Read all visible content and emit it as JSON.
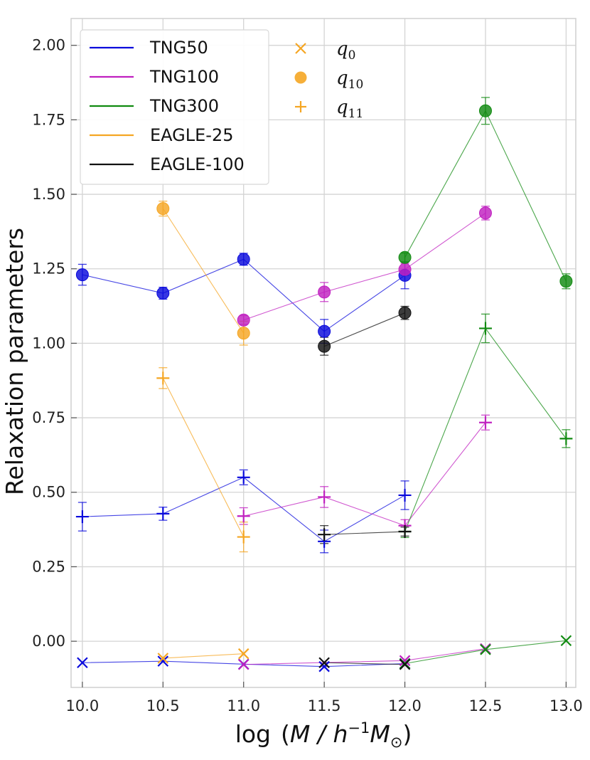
{
  "chart_data": {
    "type": "line",
    "title": "",
    "xlabel_prefix": "log",
    "xlabel_math": "M / h",
    "xlabel_exp": "−1",
    "xlabel_math2": "M",
    "xlabel_sub": "⊙",
    "ylabel": "Relaxation parameters",
    "xlim": [
      9.93,
      13.06
    ],
    "ylim": [
      -0.155,
      2.09
    ],
    "xticks": [
      10.0,
      10.5,
      11.0,
      11.5,
      12.0,
      12.5,
      13.0
    ],
    "xtick_labels": [
      "10.0",
      "10.5",
      "11.0",
      "11.5",
      "12.0",
      "12.5",
      "13.0"
    ],
    "yticks": [
      0.0,
      0.25,
      0.5,
      0.75,
      1.0,
      1.25,
      1.5,
      1.75,
      2.0
    ],
    "ytick_labels": [
      "0.00",
      "0.25",
      "0.50",
      "0.75",
      "1.00",
      "1.25",
      "1.50",
      "1.75",
      "2.00"
    ],
    "grid": true,
    "legend_position": "top-left",
    "legend_series": [
      {
        "label": "TNG50",
        "color": "#0a0adc"
      },
      {
        "label": "TNG100",
        "color": "#c020c0"
      },
      {
        "label": "TNG300",
        "color": "#108a10"
      },
      {
        "label": "EAGLE-25",
        "color": "#f5a623"
      },
      {
        "label": "EAGLE-100",
        "color": "#111111"
      }
    ],
    "legend_markers": [
      {
        "marker": "x",
        "math": "q",
        "sub": "0",
        "color": "#f5a623"
      },
      {
        "marker": "o",
        "math": "q",
        "sub": "10",
        "color": "#f5a623"
      },
      {
        "marker": "+",
        "math": "q",
        "sub": "11",
        "color": "#f5a623"
      }
    ],
    "series": [
      {
        "name": "TNG50",
        "color": "#0a0adc",
        "q0": {
          "x": [
            10.0,
            10.5,
            11.0,
            11.5,
            12.0
          ],
          "y": [
            -0.072,
            -0.067,
            -0.077,
            -0.085,
            -0.075
          ],
          "err": [
            0,
            0,
            0,
            0,
            0
          ]
        },
        "q10": {
          "x": [
            10.0,
            10.5,
            11.0,
            11.5,
            12.0
          ],
          "y": [
            1.23,
            1.168,
            1.282,
            1.04,
            1.228
          ],
          "err": [
            0.035,
            0.02,
            0.02,
            0.04,
            0.045
          ]
        },
        "q11": {
          "x": [
            10.0,
            10.5,
            11.0,
            11.5,
            12.0
          ],
          "y": [
            0.418,
            0.428,
            0.55,
            0.335,
            0.49
          ],
          "err": [
            0.048,
            0.022,
            0.025,
            0.038,
            0.048
          ]
        }
      },
      {
        "name": "TNG100",
        "color": "#c020c0",
        "q0": {
          "x": [
            11.0,
            12.0,
            12.5
          ],
          "y": [
            -0.078,
            -0.065,
            -0.025
          ],
          "err": [
            0,
            0,
            0
          ]
        },
        "q10": {
          "x": [
            11.0,
            11.5,
            12.0,
            12.5
          ],
          "y": [
            1.078,
            1.172,
            1.248,
            1.437
          ],
          "err": [
            0.015,
            0.032,
            0.02,
            0.023
          ]
        },
        "q11": {
          "x": [
            11.0,
            11.5,
            12.0,
            12.5
          ],
          "y": [
            0.42,
            0.484,
            0.388,
            0.734
          ],
          "err": [
            0.028,
            0.035,
            0.02,
            0.025
          ]
        }
      },
      {
        "name": "TNG300",
        "color": "#108a10",
        "q0": {
          "x": [
            12.0,
            12.5,
            13.0
          ],
          "y": [
            -0.075,
            -0.028,
            0.002
          ],
          "err": [
            0,
            0,
            0
          ]
        },
        "q10": {
          "x": [
            12.0,
            12.5,
            13.0
          ],
          "y": [
            1.288,
            1.78,
            1.208
          ],
          "err": [
            0.015,
            0.045,
            0.025
          ]
        },
        "q11": {
          "x": [
            12.0,
            12.5,
            13.0
          ],
          "y": [
            0.368,
            1.05,
            0.68
          ],
          "err": [
            0.02,
            0.048,
            0.03
          ]
        }
      },
      {
        "name": "EAGLE-25",
        "color": "#f5a623",
        "q0": {
          "x": [
            10.5,
            11.0
          ],
          "y": [
            -0.057,
            -0.042
          ],
          "err": [
            0,
            0
          ]
        },
        "q10": {
          "x": [
            10.5,
            11.0
          ],
          "y": [
            1.452,
            1.034
          ],
          "err": [
            0.025,
            0.04
          ]
        },
        "q11": {
          "x": [
            10.5,
            11.0
          ],
          "y": [
            0.883,
            0.35
          ],
          "err": [
            0.035,
            0.05
          ]
        }
      },
      {
        "name": "EAGLE-100",
        "color": "#111111",
        "q0": {
          "x": [
            11.5,
            12.0
          ],
          "y": [
            -0.072,
            -0.078
          ],
          "err": [
            0,
            0
          ]
        },
        "q10": {
          "x": [
            11.5,
            12.0
          ],
          "y": [
            0.99,
            1.102
          ],
          "err": [
            0.03,
            0.022
          ]
        },
        "q11": {
          "x": [
            11.5,
            12.0
          ],
          "y": [
            0.358,
            0.368
          ],
          "err": [
            0.03,
            0.015
          ]
        }
      }
    ]
  }
}
